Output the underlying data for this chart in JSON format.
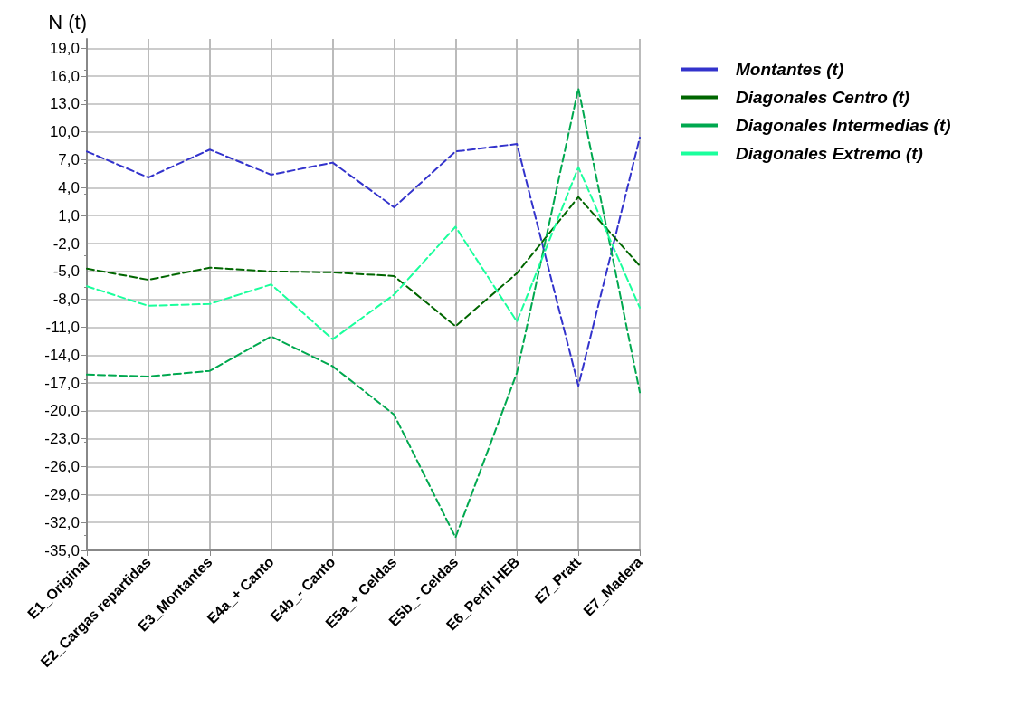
{
  "chart_data": {
    "type": "line",
    "ylabel": "N (t)",
    "categories": [
      "E1_Original",
      "E2_Cargas repartidas",
      "E3_Montantes",
      "E4a_+ Canto",
      "E4b_- Canto",
      "E5a_+ Celdas",
      "E5b_- Celdas",
      "E6_Perfil HEB",
      "E7_Pratt",
      "E7_Madera"
    ],
    "series": [
      {
        "name": "Montantes (t)",
        "color": "#3333cc",
        "values": [
          7.9,
          5.1,
          8.1,
          5.4,
          6.7,
          1.9,
          7.9,
          8.7,
          -17.3,
          9.4
        ]
      },
      {
        "name": "Diagonales Centro (t)",
        "color": "#006600",
        "values": [
          -4.7,
          -5.9,
          -4.6,
          -5.0,
          -5.1,
          -5.5,
          -10.9,
          -5.2,
          3.0,
          -4.4
        ]
      },
      {
        "name": "Diagonales Intermedias (t)",
        "color": "#00a84f",
        "values": [
          -16.1,
          -16.3,
          -15.7,
          -12.0,
          -15.2,
          -20.4,
          -33.6,
          -15.9,
          14.7,
          -18.0
        ]
      },
      {
        "name": "Diagonales Extremo (t)",
        "color": "#1aff9c",
        "values": [
          -6.6,
          -8.7,
          -8.5,
          -6.4,
          -12.3,
          -7.5,
          -0.2,
          -10.4,
          6.2,
          -8.9
        ]
      }
    ],
    "ylim": [
      -35,
      20
    ],
    "yticks": [
      {
        "value": -35,
        "label": "-35,0"
      },
      {
        "value": -32,
        "label": "-32,0"
      },
      {
        "value": -29,
        "label": "-29,0"
      },
      {
        "value": -26,
        "label": "-26,0"
      },
      {
        "value": -23,
        "label": "-23,0"
      },
      {
        "value": -20,
        "label": "-20,0"
      },
      {
        "value": -17,
        "label": "-17,0"
      },
      {
        "value": -14,
        "label": "-14,0"
      },
      {
        "value": -11,
        "label": "-11,0"
      },
      {
        "value": -8,
        "label": "-8,0"
      },
      {
        "value": -5,
        "label": "-5,0"
      },
      {
        "value": -2,
        "label": "-2,0"
      },
      {
        "value": 1,
        "label": "1,0"
      },
      {
        "value": 4,
        "label": "4,0"
      },
      {
        "value": 7,
        "label": "7,0"
      },
      {
        "value": 10,
        "label": "10,0"
      },
      {
        "value": 13,
        "label": "13,0"
      },
      {
        "value": 16,
        "label": "16,0"
      },
      {
        "value": 19,
        "label": "19,0"
      }
    ],
    "grid": true,
    "legend": "top right",
    "marker": "none",
    "line_style": "dashed"
  }
}
